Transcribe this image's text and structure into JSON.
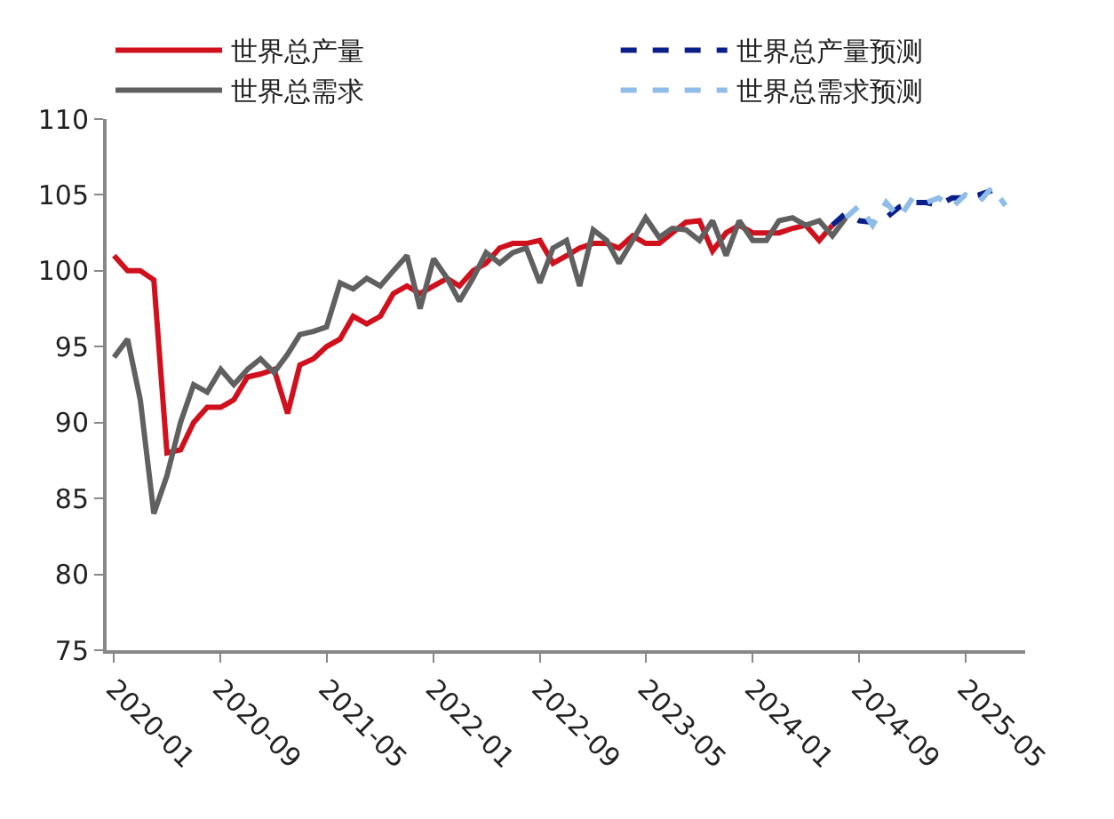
{
  "chart_data": {
    "type": "line",
    "x": [
      "2020-01",
      "2020-02",
      "2020-03",
      "2020-04",
      "2020-05",
      "2020-06",
      "2020-07",
      "2020-08",
      "2020-09",
      "2020-10",
      "2020-11",
      "2020-12",
      "2021-01",
      "2021-02",
      "2021-03",
      "2021-04",
      "2021-05",
      "2021-06",
      "2021-07",
      "2021-08",
      "2021-09",
      "2021-10",
      "2021-11",
      "2021-12",
      "2022-01",
      "2022-02",
      "2022-03",
      "2022-04",
      "2022-05",
      "2022-06",
      "2022-07",
      "2022-08",
      "2022-09",
      "2022-10",
      "2022-11",
      "2022-12",
      "2023-01",
      "2023-02",
      "2023-03",
      "2023-04",
      "2023-05",
      "2023-06",
      "2023-07",
      "2023-08",
      "2023-09",
      "2023-10",
      "2023-11",
      "2023-12",
      "2024-01",
      "2024-02",
      "2024-03",
      "2024-04",
      "2024-05",
      "2024-06",
      "2024-07",
      "2024-08"
    ],
    "series": [
      {
        "name": "世界总产量",
        "color": "#d0101c",
        "line_style": "solid",
        "values": [
          101,
          100,
          100,
          99.4,
          88,
          88.2,
          90,
          91,
          91,
          91.5,
          93,
          93.2,
          93.5,
          90.6,
          93.8,
          94.2,
          95,
          95.5,
          97,
          96.5,
          97,
          98.5,
          99,
          98.5,
          99,
          99.5,
          99,
          100,
          100.5,
          101.5,
          101.8,
          101.8,
          102,
          100.5,
          101,
          101.5,
          101.8,
          101.8,
          101.5,
          102.3,
          101.8,
          101.8,
          102.5,
          103.2,
          103.3,
          101.3,
          102.5,
          103,
          102.5,
          102.5,
          102.5,
          102.8,
          103,
          102,
          103,
          null
        ]
      },
      {
        "name": "世界总需求",
        "color": "#606060",
        "line_style": "solid",
        "values": [
          94.3,
          95.5,
          91.5,
          84,
          86.5,
          90,
          92.5,
          92,
          93.5,
          92.5,
          93.5,
          94.2,
          93.3,
          94.5,
          95.8,
          96,
          96.3,
          99.2,
          98.8,
          99.5,
          99,
          100,
          101,
          97.5,
          100.8,
          99.5,
          98,
          99.5,
          101.2,
          100.5,
          101.2,
          101.5,
          99.2,
          101.5,
          102,
          99,
          102.7,
          102,
          100.5,
          102,
          103.5,
          102.2,
          102.8,
          102.7,
          102,
          103.3,
          101,
          103.3,
          102,
          102,
          103.3,
          103.5,
          103,
          103.3,
          102.3,
          103.5
        ]
      },
      {
        "name": "世界总产量预测",
        "color": "#0a1f8a",
        "line_style": "dashed",
        "x": [
          "2024-07",
          "2024-08",
          "2024-09",
          "2024-10",
          "2024-11",
          "2024-12",
          "2025-01",
          "2025-02",
          "2025-03",
          "2025-04",
          "2025-05",
          "2025-06",
          "2025-07"
        ],
        "values": [
          103,
          103.8,
          103.3,
          103.2,
          103.5,
          104.2,
          104.5,
          104.5,
          104.3,
          104.8,
          104.8,
          105,
          105.3
        ]
      },
      {
        "name": "世界总需求预测",
        "color": "#8fbde8",
        "line_style": "dashed",
        "x": [
          "2024-08",
          "2024-09",
          "2024-10",
          "2024-11",
          "2024-12",
          "2025-01",
          "2025-02",
          "2025-03",
          "2025-04",
          "2025-05",
          "2025-06",
          "2025-07",
          "2025-08"
        ],
        "values": [
          103.5,
          104.3,
          103,
          104.5,
          103.5,
          104.8,
          104.5,
          104.8,
          104.2,
          105,
          104.5,
          105.5,
          104.3
        ]
      }
    ],
    "xlim": [
      "2019-12-15",
      "2025-09-15"
    ],
    "xticks": [
      {
        "value": "2020-01",
        "label": "2020-01"
      },
      {
        "value": "2020-09",
        "label": "2020-09"
      },
      {
        "value": "2021-05",
        "label": "2021-05"
      },
      {
        "value": "2022-01",
        "label": "2022-01"
      },
      {
        "value": "2022-09",
        "label": "2022-09"
      },
      {
        "value": "2023-05",
        "label": "2023-05"
      },
      {
        "value": "2024-01",
        "label": "2024-01"
      },
      {
        "value": "2024-09",
        "label": "2024-09"
      },
      {
        "value": "2025-05",
        "label": "2025-05"
      }
    ],
    "ylim": [
      75,
      110
    ],
    "yticks": [
      75,
      80,
      85,
      90,
      95,
      100,
      105,
      110
    ],
    "legend": "top",
    "marker": "none"
  }
}
